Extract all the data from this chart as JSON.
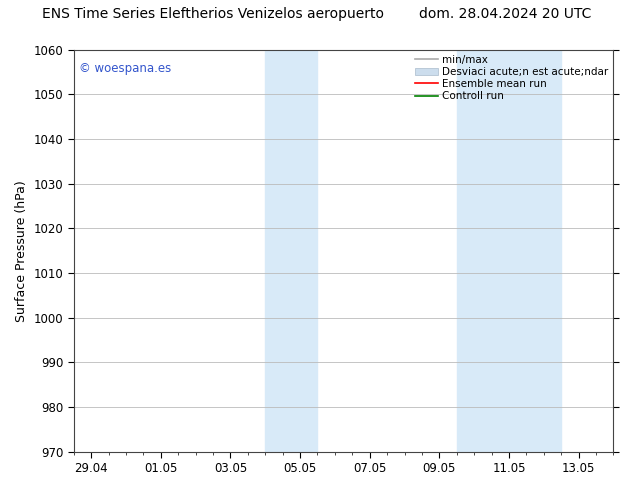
{
  "title_left": "ENS Time Series Eleftherios Venizelos aeropuerto",
  "title_right": "dom. 28.04.2024 20 UTC",
  "ylabel": "Surface Pressure (hPa)",
  "ylim": [
    970,
    1060
  ],
  "yticks": [
    970,
    980,
    990,
    1000,
    1010,
    1020,
    1030,
    1040,
    1050,
    1060
  ],
  "xtick_labels": [
    "29.04",
    "01.05",
    "03.05",
    "05.05",
    "07.05",
    "09.05",
    "11.05",
    "13.05"
  ],
  "xtick_positions": [
    0,
    2,
    4,
    6,
    8,
    10,
    12,
    14
  ],
  "xlim": [
    -0.3,
    15.0
  ],
  "shaded_bands": [
    {
      "x_start": 5.0,
      "x_end": 6.5
    },
    {
      "x_start": 10.5,
      "x_end": 13.5
    }
  ],
  "shade_color": "#d8eaf8",
  "watermark_text": "© woespana.es",
  "watermark_color": "#3355cc",
  "legend_labels": [
    "min/max",
    "Desviaci acute;n est acute;ndar",
    "Ensemble mean run",
    "Controll run"
  ],
  "legend_colors": [
    "#aaaaaa",
    "#ccdded",
    "red",
    "green"
  ],
  "bg_color": "#ffffff",
  "grid_color": "#bbbbbb",
  "title_fontsize": 10,
  "tick_fontsize": 8.5,
  "ylabel_fontsize": 9,
  "legend_fontsize": 7.5
}
